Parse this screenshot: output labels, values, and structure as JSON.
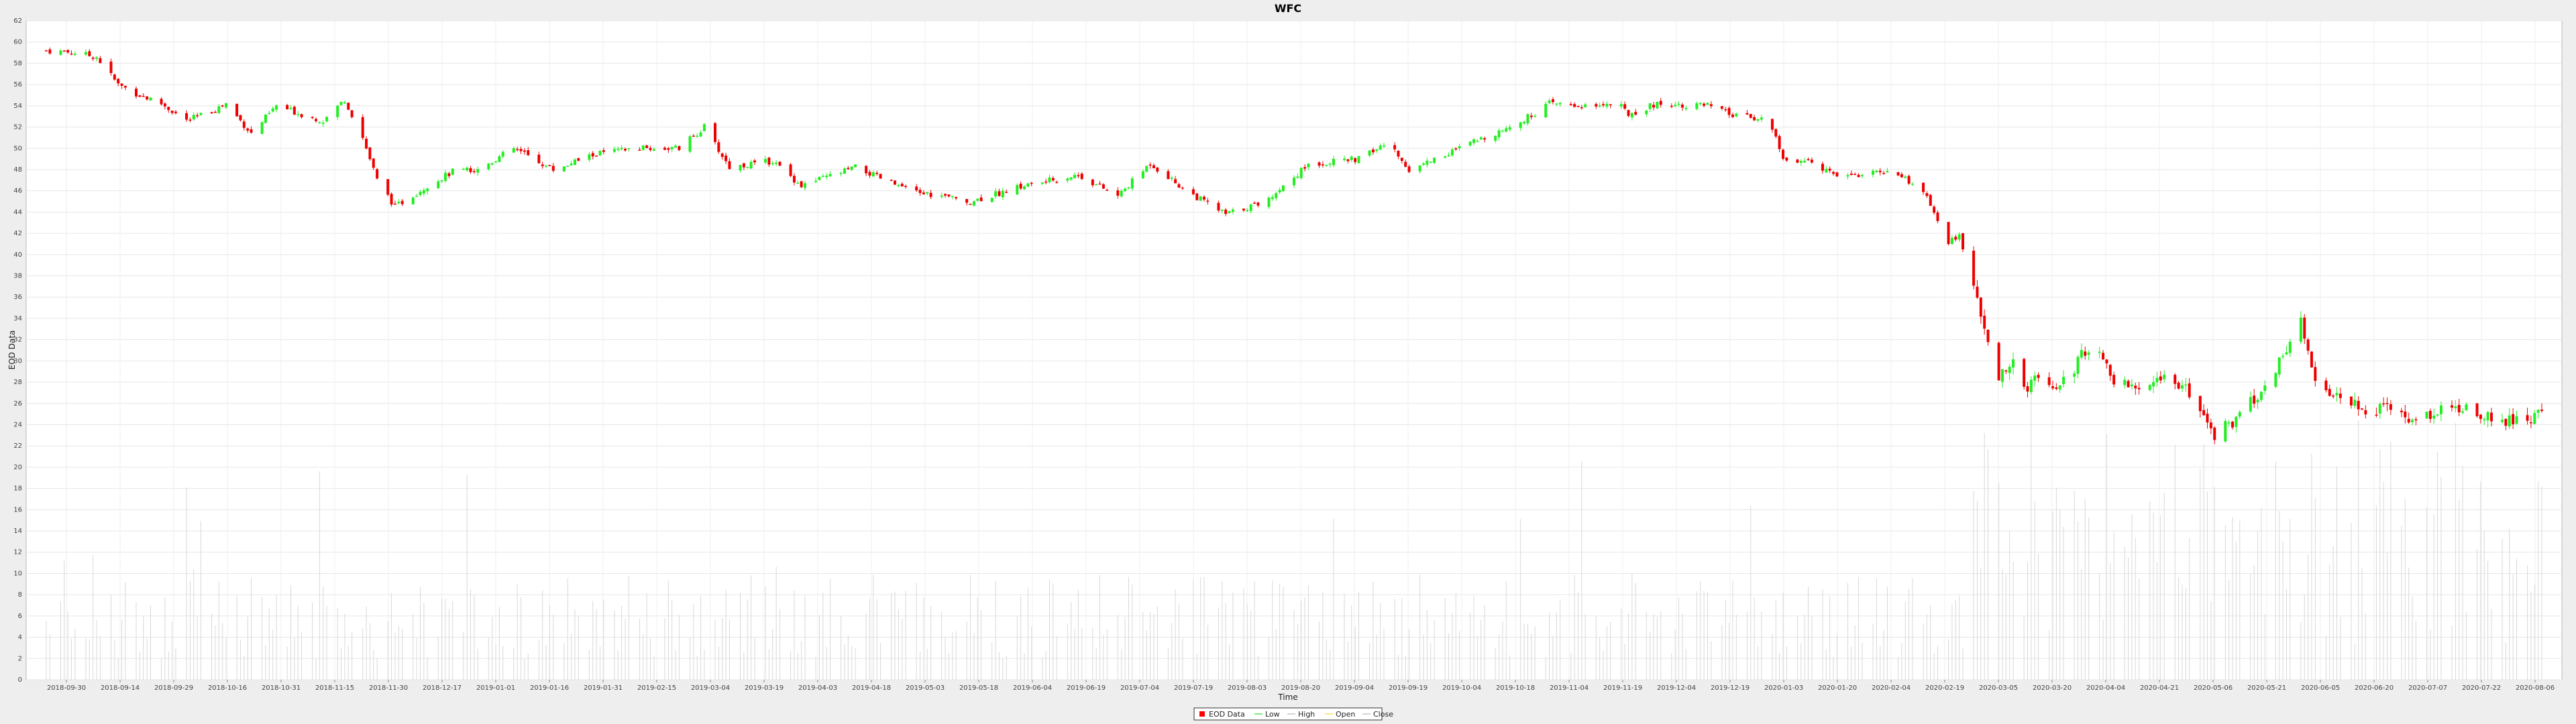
{
  "chart_data": {
    "type": "candlestick",
    "title": "WFC",
    "xlabel": "Time",
    "ylabel": "EOD Data",
    "ylim": [
      0,
      62
    ],
    "xlim": [
      "2018-09-20",
      "2020-08-14"
    ],
    "grid": true,
    "legend_position": "bottom-center",
    "y_ticks": [
      0,
      2,
      4,
      6,
      8,
      10,
      12,
      14,
      16,
      18,
      20,
      22,
      24,
      26,
      28,
      30,
      32,
      34,
      36,
      38,
      40,
      42,
      44,
      46,
      48,
      50,
      52,
      54,
      56,
      58,
      60,
      62
    ],
    "x_ticks": [
      "2018-09-30",
      "2018-09-14",
      "2018-09-29",
      "2018-10-16",
      "2018-10-31",
      "2018-11-15",
      "2018-11-30",
      "2018-12-17",
      "2019-01-01",
      "2019-01-16",
      "2019-01-31",
      "2019-02-15",
      "2019-03-04",
      "2019-03-19",
      "2019-04-03",
      "2019-04-18",
      "2019-05-03",
      "2019-05-18",
      "2019-06-04",
      "2019-06-19",
      "2019-07-04",
      "2019-07-19",
      "2019-08-03",
      "2019-08-20",
      "2019-09-04",
      "2019-09-19",
      "2019-10-04",
      "2019-10-18",
      "2019-11-04",
      "2019-11-19",
      "2019-12-04",
      "2019-12-19",
      "2020-01-03",
      "2020-01-20",
      "2020-02-04",
      "2020-02-19",
      "2020-03-05",
      "2020-03-20",
      "2020-04-04",
      "2020-04-21",
      "2020-05-06",
      "2020-05-21",
      "2020-06-05",
      "2020-06-20",
      "2020-07-07",
      "2020-07-22",
      "2020-08-06"
    ],
    "series": [
      {
        "name": "EOD Data",
        "color": "#ff0000"
      },
      {
        "name": "Low",
        "color": "#00cc00"
      },
      {
        "name": "High",
        "color": "#aaaaaa"
      },
      {
        "name": "Open",
        "color": "#ffcc00"
      },
      {
        "name": "Close",
        "color": "#aaaaaa"
      }
    ],
    "close_anchors": [
      [
        "2018-09-20",
        59.2
      ],
      [
        "2018-09-28",
        59.0
      ],
      [
        "2018-10-04",
        58.6
      ],
      [
        "2018-10-10",
        56.0
      ],
      [
        "2018-10-16",
        55.0
      ],
      [
        "2018-10-22",
        54.2
      ],
      [
        "2018-10-29",
        52.6
      ],
      [
        "2018-11-05",
        53.5
      ],
      [
        "2018-11-09",
        54.2
      ],
      [
        "2018-11-16",
        51.4
      ],
      [
        "2018-11-23",
        54.0
      ],
      [
        "2018-11-30",
        53.2
      ],
      [
        "2018-12-06",
        52.6
      ],
      [
        "2018-12-12",
        54.6
      ],
      [
        "2018-12-17",
        51.0
      ],
      [
        "2018-12-21",
        47.0
      ],
      [
        "2018-12-26",
        44.5
      ],
      [
        "2019-01-04",
        46.5
      ],
      [
        "2019-01-11",
        47.8
      ],
      [
        "2019-01-18",
        48.0
      ],
      [
        "2019-01-28",
        50.0
      ],
      [
        "2019-02-08",
        48.0
      ],
      [
        "2019-02-20",
        49.5
      ],
      [
        "2019-03-04",
        50.0
      ],
      [
        "2019-03-15",
        50.0
      ],
      [
        "2019-03-22",
        52.0
      ],
      [
        "2019-03-29",
        48.2
      ],
      [
        "2019-04-10",
        48.8
      ],
      [
        "2019-04-18",
        46.5
      ],
      [
        "2019-05-03",
        48.2
      ],
      [
        "2019-05-18",
        46.0
      ],
      [
        "2019-06-04",
        45.0
      ],
      [
        "2019-06-19",
        46.5
      ],
      [
        "2019-07-04",
        47.5
      ],
      [
        "2019-07-15",
        45.5
      ],
      [
        "2019-07-24",
        48.6
      ],
      [
        "2019-08-03",
        46.0
      ],
      [
        "2019-08-14",
        43.8
      ],
      [
        "2019-08-25",
        45.0
      ],
      [
        "2019-09-06",
        48.5
      ],
      [
        "2019-09-20",
        49.0
      ],
      [
        "2019-09-28",
        50.5
      ],
      [
        "2019-10-04",
        48.0
      ],
      [
        "2019-10-18",
        50.0
      ],
      [
        "2019-11-04",
        52.5
      ],
      [
        "2019-11-12",
        54.2
      ],
      [
        "2019-11-20",
        54.0
      ],
      [
        "2019-12-01",
        54.2
      ],
      [
        "2019-12-04",
        53.2
      ],
      [
        "2019-12-12",
        54.2
      ],
      [
        "2019-12-26",
        54.0
      ],
      [
        "2020-01-03",
        53.0
      ],
      [
        "2020-01-12",
        52.8
      ],
      [
        "2020-01-16",
        49.0
      ],
      [
        "2020-01-24",
        48.6
      ],
      [
        "2020-01-31",
        47.6
      ],
      [
        "2020-02-08",
        47.5
      ],
      [
        "2020-02-15",
        48.0
      ],
      [
        "2020-02-24",
        46.0
      ],
      [
        "2020-03-02",
        41.0
      ],
      [
        "2020-03-05",
        42.0
      ],
      [
        "2020-03-09",
        37.0
      ],
      [
        "2020-03-12",
        33.0
      ],
      [
        "2020-03-16",
        28.5
      ],
      [
        "2020-03-20",
        29.5
      ],
      [
        "2020-03-24",
        27.2
      ],
      [
        "2020-03-27",
        29.0
      ],
      [
        "2020-04-02",
        27.5
      ],
      [
        "2020-04-08",
        30.5
      ],
      [
        "2020-04-13",
        31.5
      ],
      [
        "2020-04-17",
        28.0
      ],
      [
        "2020-04-24",
        27.0
      ],
      [
        "2020-05-01",
        28.5
      ],
      [
        "2020-05-08",
        27.0
      ],
      [
        "2020-05-14",
        23.0
      ],
      [
        "2020-05-21",
        24.5
      ],
      [
        "2020-05-28",
        27.0
      ],
      [
        "2020-06-03",
        30.5
      ],
      [
        "2020-06-08",
        33.5
      ],
      [
        "2020-06-12",
        27.5
      ],
      [
        "2020-06-19",
        27.0
      ],
      [
        "2020-06-26",
        25.5
      ],
      [
        "2020-07-03",
        25.5
      ],
      [
        "2020-07-10",
        24.5
      ],
      [
        "2020-07-17",
        25.5
      ],
      [
        "2020-07-24",
        25.8
      ],
      [
        "2020-07-31",
        24.5
      ],
      [
        "2020-08-07",
        24.5
      ],
      [
        "2020-08-14",
        25.0
      ]
    ]
  }
}
